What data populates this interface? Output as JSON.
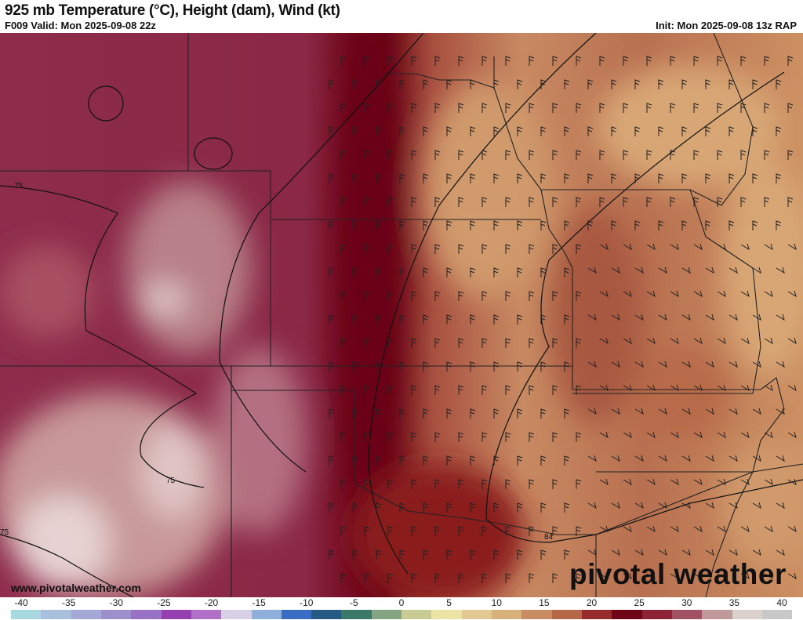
{
  "header": {
    "title": "925 mb Temperature (°C), Height (dam), Wind (kt)",
    "valid": "F009 Valid: Mon 2025-09-08 22z",
    "init": "Init: Mon 2025-09-08 13z RAP"
  },
  "map": {
    "contour_labels": [
      "75",
      "75",
      "75",
      "84"
    ],
    "fields": [
      "temperature-shading",
      "height-contours",
      "wind-barbs",
      "state-and-county-borders"
    ]
  },
  "footer": {
    "url": "www.pivotalweather.com",
    "logo": "pivotal weather"
  },
  "colorbar": {
    "unit": "°C",
    "range": [
      -40,
      40
    ],
    "labels": [
      "-40",
      "-35",
      "-30",
      "-25",
      "-20",
      "-15",
      "-10",
      "-5",
      "0",
      "5",
      "10",
      "15",
      "20",
      "25",
      "30",
      "35",
      "40"
    ],
    "colors": [
      "#a8d8e0",
      "#a8c0dc",
      "#a4a8d4",
      "#9c90cc",
      "#9870c4",
      "#9440b0",
      "#b070c8",
      "#d8d0e4",
      "#90b0dc",
      "#3a6cc4",
      "#245a84",
      "#3c7868",
      "#84a484",
      "#c8cc94",
      "#ece4a4",
      "#e2c892",
      "#d8b07a",
      "#c88c62",
      "#b46848",
      "#982c2c",
      "#6e0616",
      "#8c2436",
      "#a05262",
      "#c09a9a",
      "#dcd0cc",
      "#c8c8c8"
    ]
  }
}
